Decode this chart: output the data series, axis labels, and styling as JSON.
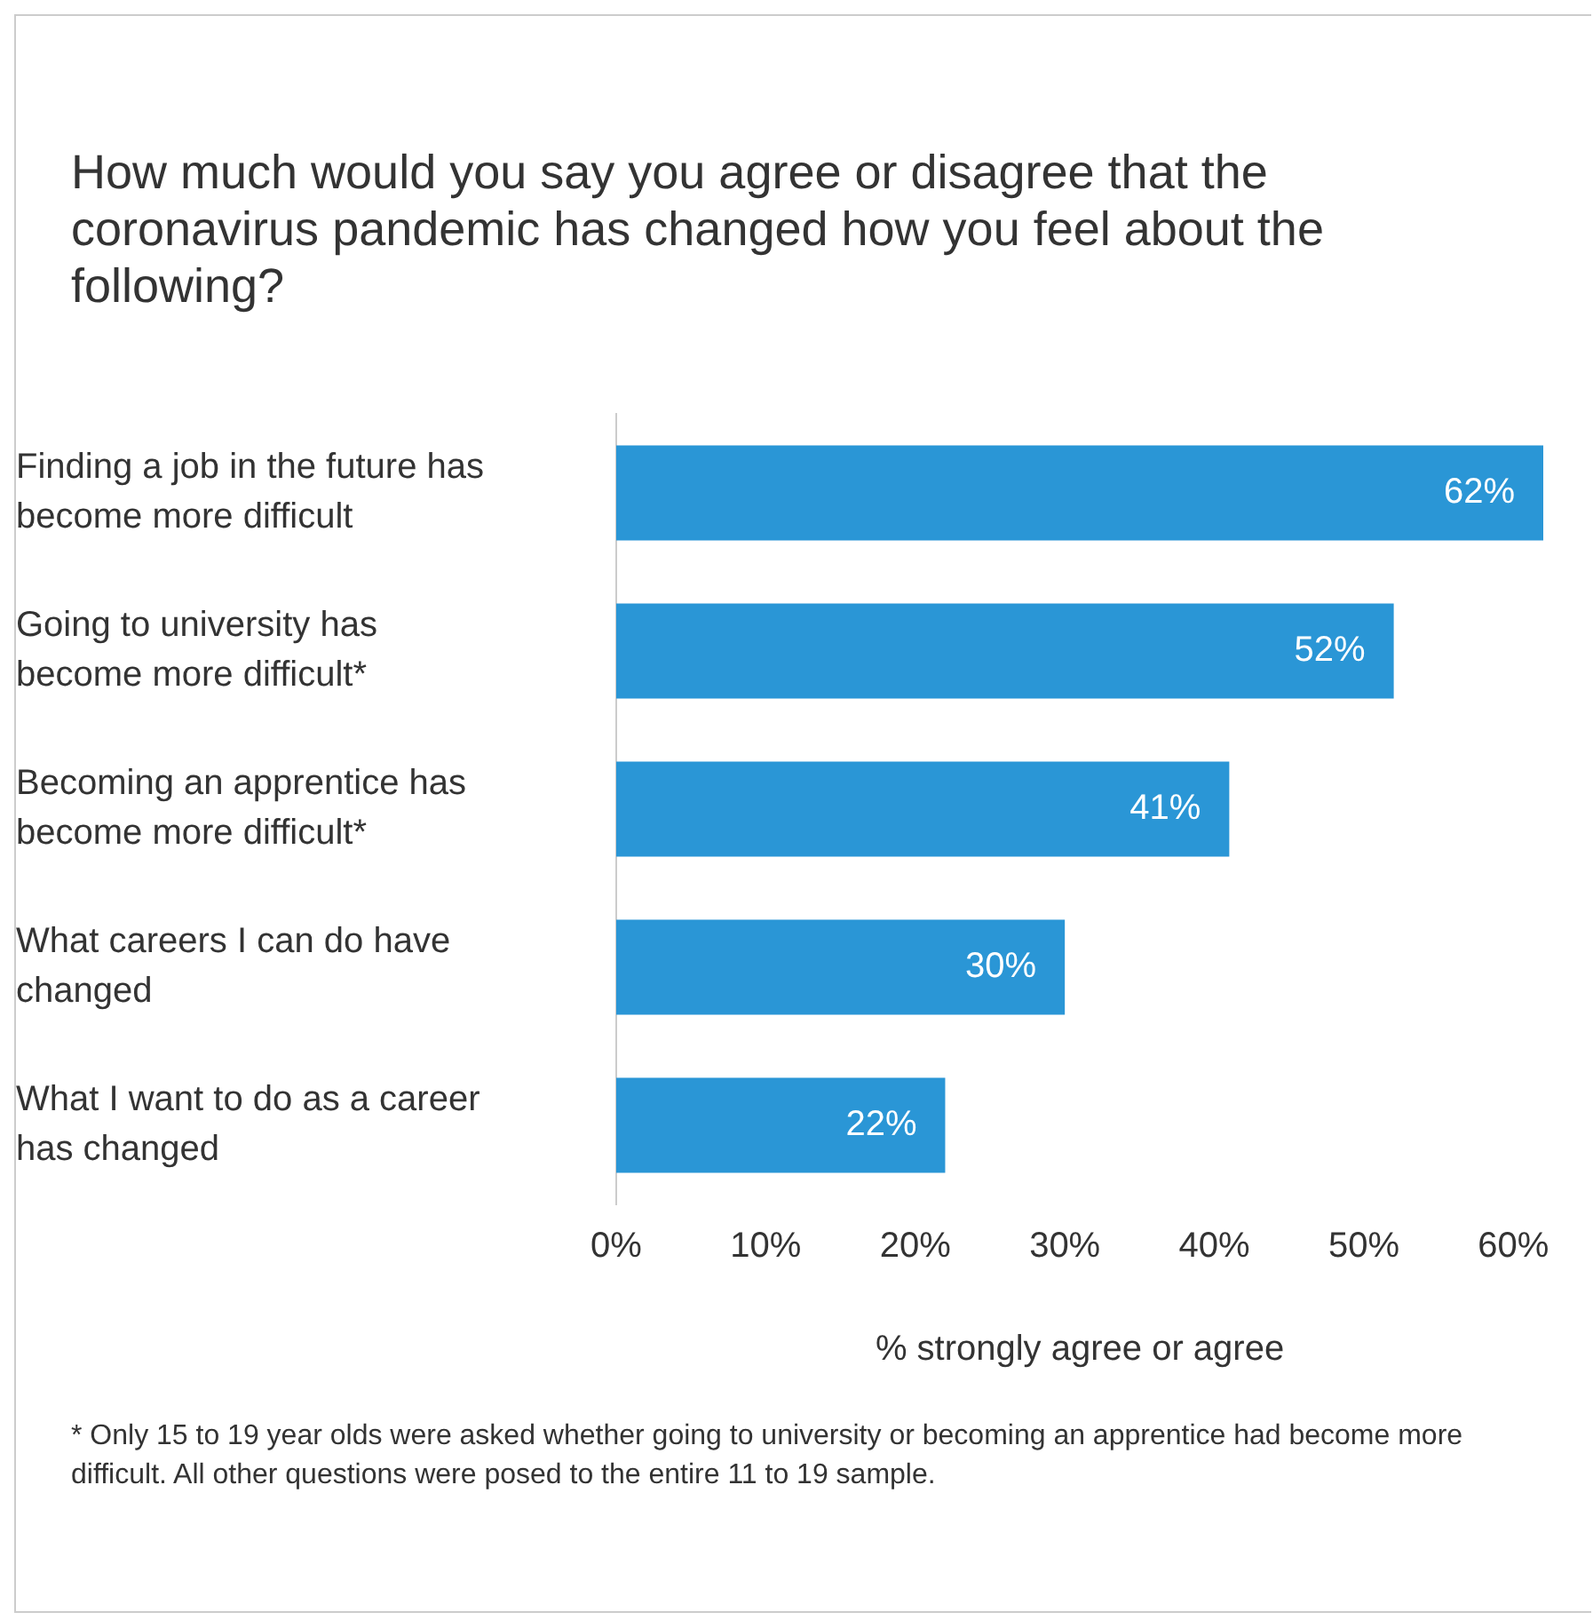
{
  "chart_data": {
    "type": "bar",
    "orientation": "horizontal",
    "title": "How much would you say you agree or disagree that the coronavirus pandemic has changed how you feel about the following?",
    "categories": [
      "Finding a job in the future has become more difficult",
      "Going to university has become more difficult*",
      "Becoming an apprentice has become more difficult*",
      "What careers I can do have changed",
      "What I want to do as a career has changed"
    ],
    "values": [
      62,
      52,
      41,
      30,
      22
    ],
    "value_labels": [
      "62%",
      "52%",
      "41%",
      "30%",
      "22%"
    ],
    "color": "#2a96d6",
    "xlim": [
      0,
      62
    ],
    "xticks": [
      {
        "value": 0,
        "label": "0%"
      },
      {
        "value": 10,
        "label": "10%"
      },
      {
        "value": 20,
        "label": "20%"
      },
      {
        "value": 30,
        "label": "30%"
      },
      {
        "value": 40,
        "label": "40%"
      },
      {
        "value": 50,
        "label": "50%"
      },
      {
        "value": 60,
        "label": "60%"
      }
    ],
    "xlabel": "% strongly agree or agree",
    "grid": false,
    "legend": false,
    "annotations": [
      "* Only 15 to 19 year olds were asked whether going to university or becoming an apprentice had become more difficult. All other questions were posed to the entire 11 to 19 sample."
    ]
  }
}
